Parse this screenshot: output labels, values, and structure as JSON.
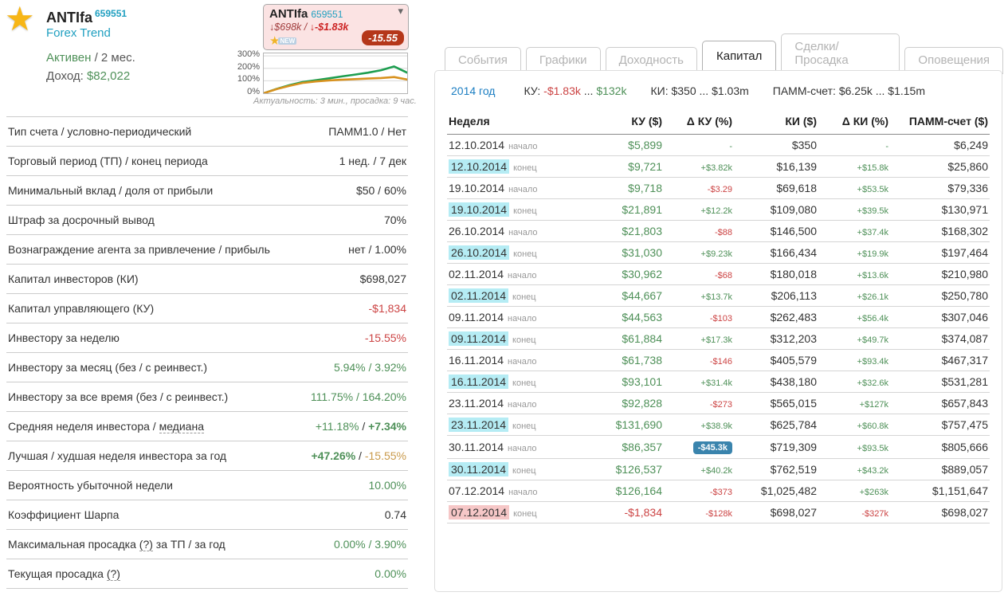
{
  "header": {
    "title": "ANTIfa",
    "account_id": "659551",
    "broker": "Forex Trend",
    "status": "Активен",
    "status_suffix": " / 2 мес.",
    "income_label": "Доход: ",
    "income_value": "$82,022"
  },
  "widget": {
    "title": "ANTIfa",
    "account_id": "659551",
    "metric_1": "↓$698k / ",
    "metric_2": "↓-$1.83k",
    "new_label": "NEW",
    "badge": "-15.55"
  },
  "chart_data": {
    "type": "line",
    "x": [
      0,
      1,
      2,
      3,
      4,
      5,
      6,
      7,
      8,
      9,
      10,
      11
    ],
    "series": [
      {
        "name": "total-return",
        "color": "#1e9e50",
        "values": [
          0,
          35,
          65,
          90,
          105,
          120,
          135,
          150,
          165,
          185,
          215,
          165
        ]
      },
      {
        "name": "investor-return",
        "color": "#d8921f",
        "values": [
          0,
          33,
          60,
          83,
          95,
          103,
          108,
          113,
          118,
          122,
          130,
          110
        ]
      }
    ],
    "yticks": [
      {
        "label": "300%",
        "value": 300
      },
      {
        "label": "200%",
        "value": 200
      },
      {
        "label": "100%",
        "value": 100
      },
      {
        "label": "0%",
        "value": 0
      }
    ],
    "ylim": [
      0,
      320
    ],
    "grid": true,
    "legend": "none"
  },
  "chart_caption": "Актуальность: 3 мин., просадка: 9 час.",
  "stats": [
    {
      "label": [
        {
          "t": "Тип счета / условно-периодический"
        }
      ],
      "value": [
        {
          "t": "ПАММ1.0 / Нет",
          "c": "dark"
        }
      ]
    },
    {
      "label": [
        {
          "t": "Торговый период (ТП) / конец периода"
        }
      ],
      "value": [
        {
          "t": "1 нед. / 7 дек",
          "c": "dark"
        }
      ]
    },
    {
      "label": [
        {
          "t": "Минимальный вклад / доля от прибыли"
        }
      ],
      "value": [
        {
          "t": "$50 / 60%",
          "c": "dark"
        }
      ]
    },
    {
      "label": [
        {
          "t": "Штраф за досрочный вывод"
        }
      ],
      "value": [
        {
          "t": "70%",
          "c": "dark"
        }
      ]
    },
    {
      "label": [
        {
          "t": "Вознаграждение агента за привлечение / прибыль"
        }
      ],
      "value": [
        {
          "t": "нет / 1.00%",
          "c": "dark"
        }
      ]
    },
    {
      "label": [
        {
          "t": "Капитал инвесторов (КИ)"
        }
      ],
      "value": [
        {
          "t": "$698,027",
          "c": "dark"
        }
      ]
    },
    {
      "label": [
        {
          "t": "Капитал управляющего (КУ)"
        }
      ],
      "value": [
        {
          "t": "-$1,834",
          "c": "red"
        }
      ]
    },
    {
      "label": [
        {
          "t": "Инвестору за неделю"
        }
      ],
      "value": [
        {
          "t": "-15.55%",
          "c": "red"
        }
      ]
    },
    {
      "label": [
        {
          "t": "Инвестору за месяц (без / с реинвест.)"
        }
      ],
      "value": [
        {
          "t": "5.94% / 3.92%",
          "c": "green"
        }
      ]
    },
    {
      "label": [
        {
          "t": "Инвестору за все время (без / с реинвест.)"
        }
      ],
      "value": [
        {
          "t": "111.75% / 164.20%",
          "c": "green"
        }
      ]
    },
    {
      "label": [
        {
          "t": "Средняя неделя инвестора / "
        },
        {
          "t": "медиана",
          "d": true
        }
      ],
      "value": [
        {
          "t": "+11.18%",
          "c": "green"
        },
        {
          "t": " / ",
          "c": "dark"
        },
        {
          "t": "+7.34%",
          "c": "green",
          "b": true
        }
      ]
    },
    {
      "label": [
        {
          "t": "Лучшая / худшая неделя инвестора за год"
        }
      ],
      "value": [
        {
          "t": "+47.26%",
          "c": "green",
          "b": true
        },
        {
          "t": " / ",
          "c": "dark"
        },
        {
          "t": "-15.55%",
          "c": "orange"
        }
      ]
    },
    {
      "label": [
        {
          "t": "Вероятность убыточной недели"
        }
      ],
      "value": [
        {
          "t": "10.00%",
          "c": "green"
        }
      ]
    },
    {
      "label": [
        {
          "t": "Коэффициент Шарпа"
        }
      ],
      "value": [
        {
          "t": "0.74",
          "c": "dark"
        }
      ]
    },
    {
      "label": [
        {
          "t": "Максимальная просадка "
        },
        {
          "t": "(?)",
          "d": true
        },
        {
          "t": " за ТП / за год"
        }
      ],
      "value": [
        {
          "t": "0.00% / 3.90%",
          "c": "green"
        }
      ]
    },
    {
      "label": [
        {
          "t": "Текущая просадка "
        },
        {
          "t": "(?)",
          "d": true
        }
      ],
      "value": [
        {
          "t": "0.00%",
          "c": "green"
        }
      ]
    }
  ],
  "tabs": [
    {
      "label": "События",
      "name": "tab-events",
      "active": false
    },
    {
      "label": "Графики",
      "name": "tab-charts",
      "active": false
    },
    {
      "label": "Доходность",
      "name": "tab-profitability",
      "active": false
    },
    {
      "label": "Капитал",
      "name": "tab-capital",
      "active": true
    },
    {
      "label": "Сделки/Просадка",
      "name": "tab-trades-drawdown",
      "active": false
    },
    {
      "label": "Оповещения",
      "name": "tab-notifications",
      "active": false
    }
  ],
  "year_bar": {
    "year_link": "2014 год",
    "groups": [
      [
        {
          "t": "КУ: ",
          "c": "dark"
        },
        {
          "t": "-$1.83k",
          "c": "red"
        },
        {
          "t": " ... ",
          "c": "dark"
        },
        {
          "t": "$132k",
          "c": "green"
        }
      ],
      [
        {
          "t": "КИ: $350 ... $1.03m",
          "c": "dark"
        }
      ],
      [
        {
          "t": "ПАММ-счет: $6.25k ... $1.15m",
          "c": "dark"
        }
      ]
    ]
  },
  "capital_table": {
    "headers": [
      "Неделя",
      "КУ ($)",
      "Δ КУ (%)",
      "КИ ($)",
      "Δ КИ (%)",
      "ПАММ-счет ($)"
    ],
    "rows": [
      {
        "date": "12.10.2014",
        "phase": "начало",
        "hl": "",
        "ku": "$5,899",
        "kuc": "green",
        "dku": "-",
        "dkuc": "green",
        "dku_badge": false,
        "ki": "$350",
        "dki": "-",
        "dkic": "green",
        "pamm": "$6,249"
      },
      {
        "date": "12.10.2014",
        "phase": "конец",
        "hl": "cyan",
        "ku": "$9,721",
        "kuc": "green",
        "dku": "+$3.82k",
        "dkuc": "green",
        "dku_badge": false,
        "ki": "$16,139",
        "dki": "+$15.8k",
        "dkic": "green",
        "pamm": "$25,860"
      },
      {
        "date": "19.10.2014",
        "phase": "начало",
        "hl": "",
        "ku": "$9,718",
        "kuc": "green",
        "dku": "-$3.29",
        "dkuc": "red",
        "dku_badge": false,
        "ki": "$69,618",
        "dki": "+$53.5k",
        "dkic": "green",
        "pamm": "$79,336"
      },
      {
        "date": "19.10.2014",
        "phase": "конец",
        "hl": "cyan",
        "ku": "$21,891",
        "kuc": "green",
        "dku": "+$12.2k",
        "dkuc": "green",
        "dku_badge": false,
        "ki": "$109,080",
        "dki": "+$39.5k",
        "dkic": "green",
        "pamm": "$130,971"
      },
      {
        "date": "26.10.2014",
        "phase": "начало",
        "hl": "",
        "ku": "$21,803",
        "kuc": "green",
        "dku": "-$88",
        "dkuc": "red",
        "dku_badge": false,
        "ki": "$146,500",
        "dki": "+$37.4k",
        "dkic": "green",
        "pamm": "$168,302"
      },
      {
        "date": "26.10.2014",
        "phase": "конец",
        "hl": "cyan",
        "ku": "$31,030",
        "kuc": "green",
        "dku": "+$9.23k",
        "dkuc": "green",
        "dku_badge": false,
        "ki": "$166,434",
        "dki": "+$19.9k",
        "dkic": "green",
        "pamm": "$197,464"
      },
      {
        "date": "02.11.2014",
        "phase": "начало",
        "hl": "",
        "ku": "$30,962",
        "kuc": "green",
        "dku": "-$68",
        "dkuc": "red",
        "dku_badge": false,
        "ki": "$180,018",
        "dki": "+$13.6k",
        "dkic": "green",
        "pamm": "$210,980"
      },
      {
        "date": "02.11.2014",
        "phase": "конец",
        "hl": "cyan",
        "ku": "$44,667",
        "kuc": "green",
        "dku": "+$13.7k",
        "dkuc": "green",
        "dku_badge": false,
        "ki": "$206,113",
        "dki": "+$26.1k",
        "dkic": "green",
        "pamm": "$250,780"
      },
      {
        "date": "09.11.2014",
        "phase": "начало",
        "hl": "",
        "ku": "$44,563",
        "kuc": "green",
        "dku": "-$103",
        "dkuc": "red",
        "dku_badge": false,
        "ki": "$262,483",
        "dki": "+$56.4k",
        "dkic": "green",
        "pamm": "$307,046"
      },
      {
        "date": "09.11.2014",
        "phase": "конец",
        "hl": "cyan",
        "ku": "$61,884",
        "kuc": "green",
        "dku": "+$17.3k",
        "dkuc": "green",
        "dku_badge": false,
        "ki": "$312,203",
        "dki": "+$49.7k",
        "dkic": "green",
        "pamm": "$374,087"
      },
      {
        "date": "16.11.2014",
        "phase": "начало",
        "hl": "",
        "ku": "$61,738",
        "kuc": "green",
        "dku": "-$146",
        "dkuc": "red",
        "dku_badge": false,
        "ki": "$405,579",
        "dki": "+$93.4k",
        "dkic": "green",
        "pamm": "$467,317"
      },
      {
        "date": "16.11.2014",
        "phase": "конец",
        "hl": "cyan",
        "ku": "$93,101",
        "kuc": "green",
        "dku": "+$31.4k",
        "dkuc": "green",
        "dku_badge": false,
        "ki": "$438,180",
        "dki": "+$32.6k",
        "dkic": "green",
        "pamm": "$531,281"
      },
      {
        "date": "23.11.2014",
        "phase": "начало",
        "hl": "",
        "ku": "$92,828",
        "kuc": "green",
        "dku": "-$273",
        "dkuc": "red",
        "dku_badge": false,
        "ki": "$565,015",
        "dki": "+$127k",
        "dkic": "green",
        "pamm": "$657,843"
      },
      {
        "date": "23.11.2014",
        "phase": "конец",
        "hl": "cyan",
        "ku": "$131,690",
        "kuc": "green",
        "dku": "+$38.9k",
        "dkuc": "green",
        "dku_badge": false,
        "ki": "$625,784",
        "dki": "+$60.8k",
        "dkic": "green",
        "pamm": "$757,475"
      },
      {
        "date": "30.11.2014",
        "phase": "начало",
        "hl": "",
        "ku": "$86,357",
        "kuc": "green",
        "dku": "-$45.3k",
        "dkuc": "red",
        "dku_badge": true,
        "ki": "$719,309",
        "dki": "+$93.5k",
        "dkic": "green",
        "pamm": "$805,666"
      },
      {
        "date": "30.11.2014",
        "phase": "конец",
        "hl": "cyan",
        "ku": "$126,537",
        "kuc": "green",
        "dku": "+$40.2k",
        "dkuc": "green",
        "dku_badge": false,
        "ki": "$762,519",
        "dki": "+$43.2k",
        "dkic": "green",
        "pamm": "$889,057"
      },
      {
        "date": "07.12.2014",
        "phase": "начало",
        "hl": "",
        "ku": "$126,164",
        "kuc": "green",
        "dku": "-$373",
        "dkuc": "red",
        "dku_badge": false,
        "ki": "$1,025,482",
        "dki": "+$263k",
        "dkic": "green",
        "pamm": "$1,151,647"
      },
      {
        "date": "07.12.2014",
        "phase": "конец",
        "hl": "pink",
        "ku": "-$1,834",
        "kuc": "red",
        "dku": "-$128k",
        "dkuc": "red",
        "dku_badge": false,
        "ki": "$698,027",
        "dki": "-$327k",
        "dkic": "red",
        "pamm": "$698,027"
      }
    ]
  },
  "colors": {
    "teal_link": "#1f9fc0",
    "green_value": "#4e9058",
    "red_value": "#cc4444",
    "badge_red": "#b5371a",
    "badge_blue": "#3a84ad",
    "highlight_cyan": "#b5ecf4",
    "highlight_pink": "#f6c7c7",
    "widget_bg": "#fbe3e3",
    "year_link_blue": "#1b7ec2",
    "chart_line_green": "#1e9e50",
    "chart_line_orange": "#d8921f"
  }
}
